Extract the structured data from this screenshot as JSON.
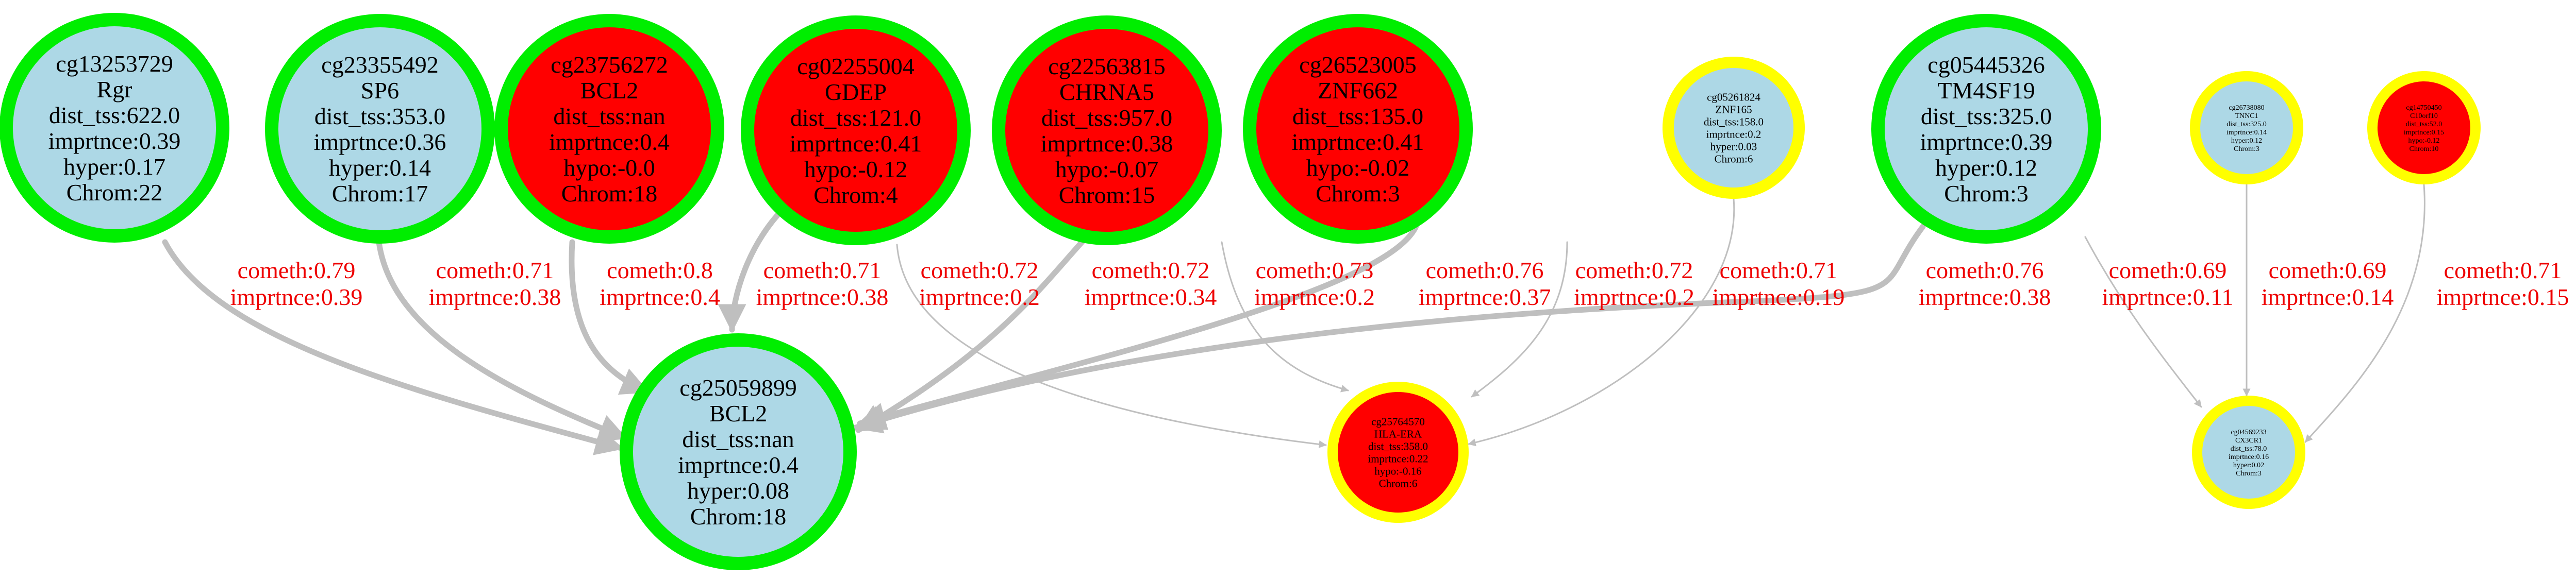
{
  "colors": {
    "node_fill_light": "#add8e6",
    "node_fill_red": "#ff0000",
    "ring_green": "#00ee00",
    "ring_yellow": "#ffff00",
    "edge": "#bfbfbf",
    "edge_label": "#ee0000"
  },
  "nodes": [
    {
      "id": "cg13253729",
      "lines": [
        "cg13253729",
        "Rgr",
        "dist_tss:622.0",
        "imprtnce:0.39",
        "hyper:0.17",
        "Chrom:22"
      ],
      "fill": "light",
      "ring": "green"
    },
    {
      "id": "cg23355492",
      "lines": [
        "cg23355492",
        "SP6",
        "dist_tss:353.0",
        "imprtnce:0.36",
        "hyper:0.14",
        "Chrom:17"
      ],
      "fill": "light",
      "ring": "green"
    },
    {
      "id": "cg23756272",
      "lines": [
        "cg23756272",
        "BCL2",
        "dist_tss:nan",
        "imprtnce:0.4",
        "hypo:-0.0",
        "Chrom:18"
      ],
      "fill": "red",
      "ring": "green"
    },
    {
      "id": "cg02255004",
      "lines": [
        "cg02255004",
        "GDEP",
        "dist_tss:121.0",
        "imprtnce:0.41",
        "hypo:-0.12",
        "Chrom:4"
      ],
      "fill": "red",
      "ring": "green"
    },
    {
      "id": "cg22563815",
      "lines": [
        "cg22563815",
        "CHRNA5",
        "dist_tss:957.0",
        "imprtnce:0.38",
        "hypo:-0.07",
        "Chrom:15"
      ],
      "fill": "red",
      "ring": "green"
    },
    {
      "id": "cg26523005",
      "lines": [
        "cg26523005",
        "ZNF662",
        "dist_tss:135.0",
        "imprtnce:0.41",
        "hypo:-0.02",
        "Chrom:3"
      ],
      "fill": "red",
      "ring": "green"
    },
    {
      "id": "cg05261824",
      "lines": [
        "cg05261824",
        "ZNF165",
        "dist_tss:158.0",
        "imprtnce:0.2",
        "hyper:0.03",
        "Chrom:6"
      ],
      "fill": "light",
      "ring": "yellow"
    },
    {
      "id": "cg05445326",
      "lines": [
        "cg05445326",
        "TM4SF19",
        "dist_tss:325.0",
        "imprtnce:0.39",
        "hyper:0.12",
        "Chrom:3"
      ],
      "fill": "light",
      "ring": "green"
    },
    {
      "id": "cg26738080",
      "lines": [
        "cg26738080",
        "TNNC1",
        "dist_tss:325.0",
        "imprtnce:0.14",
        "hyper:0.12",
        "Chrom:3"
      ],
      "fill": "light",
      "ring": "yellow"
    },
    {
      "id": "cg14750450",
      "lines": [
        "cg14750450",
        "C10orf10",
        "dist_tss:52.0",
        "imprtnce:0.15",
        "hypo:-0.12",
        "Chrom:10"
      ],
      "fill": "red",
      "ring": "yellow"
    },
    {
      "id": "cg25059899",
      "lines": [
        "cg25059899",
        "BCL2",
        "dist_tss:nan",
        "imprtnce:0.4",
        "hyper:0.08",
        "Chrom:18"
      ],
      "fill": "light",
      "ring": "green"
    },
    {
      "id": "cg25764570",
      "lines": [
        "cg25764570",
        "HLA-ERA",
        "dist_tss:358.0",
        "imprtnce:0.22",
        "hypo:-0.16",
        "Chrom:6"
      ],
      "fill": "red",
      "ring": "yellow"
    },
    {
      "id": "cg04569233",
      "lines": [
        "cg04569233",
        "CX3CR1",
        "dist_tss:78.0",
        "imprtnce:0.16",
        "hyper:0.02",
        "Chrom:3"
      ],
      "fill": "light",
      "ring": "yellow"
    }
  ],
  "edges": [
    {
      "from": "cg13253729",
      "to": "cg25059899",
      "lines": [
        "cometh:0.79",
        "imprtnce:0.39"
      ]
    },
    {
      "from": "cg23355492",
      "to": "cg25059899",
      "lines": [
        "cometh:0.71",
        "imprtnce:0.38"
      ]
    },
    {
      "from": "cg23756272",
      "to": "cg25059899",
      "lines": [
        "cometh:0.8",
        "imprtnce:0.4"
      ]
    },
    {
      "from": "cg02255004",
      "to": "cg25059899",
      "lines": [
        "cometh:0.71",
        "imprtnce:0.38"
      ]
    },
    {
      "from": "cg02255004",
      "to": "cg25764570",
      "lines": [
        "cometh:0.72",
        "imprtnce:0.2"
      ]
    },
    {
      "from": "cg22563815",
      "to": "cg25059899",
      "lines": [
        "cometh:0.72",
        "imprtnce:0.34"
      ]
    },
    {
      "from": "cg22563815",
      "to": "cg25764570",
      "lines": [
        "cometh:0.73",
        "imprtnce:0.2"
      ]
    },
    {
      "from": "cg26523005",
      "to": "cg25059899",
      "lines": [
        "cometh:0.76",
        "imprtnce:0.37"
      ]
    },
    {
      "from": "cg26523005",
      "to": "cg25764570",
      "lines": [
        "cometh:0.72",
        "imprtnce:0.2"
      ]
    },
    {
      "from": "cg05261824",
      "to": "cg25764570",
      "lines": [
        "cometh:0.71",
        "imprtnce:0.19"
      ]
    },
    {
      "from": "cg05445326",
      "to": "cg25059899",
      "lines": [
        "cometh:0.76",
        "imprtnce:0.38"
      ]
    },
    {
      "from": "cg05445326",
      "to": "cg04569233",
      "lines": [
        "cometh:0.69",
        "imprtnce:0.11"
      ]
    },
    {
      "from": "cg26738080",
      "to": "cg04569233",
      "lines": [
        "cometh:0.69",
        "imprtnce:0.14"
      ]
    },
    {
      "from": "cg14750450",
      "to": "cg04569233",
      "lines": [
        "cometh:0.71",
        "imprtnce:0.15"
      ]
    }
  ]
}
